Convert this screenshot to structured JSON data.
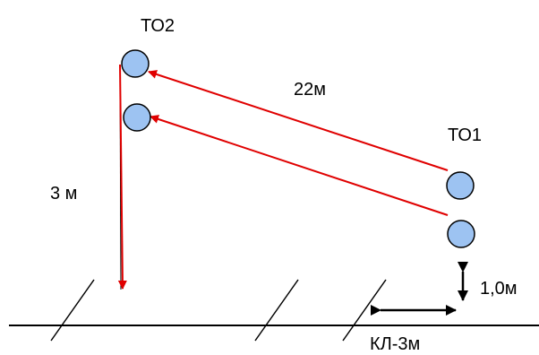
{
  "labels": {
    "to2": "ТО2",
    "to1": "ТО1",
    "dist_22": "22м",
    "dist_3": "3 м",
    "height_1": "1,0м",
    "cable": "КЛ-3м"
  },
  "colors": {
    "node_fill": "#9DC3F2",
    "node_stroke": "#000000",
    "red_arrow": "#E00000",
    "black_line": "#000000"
  }
}
